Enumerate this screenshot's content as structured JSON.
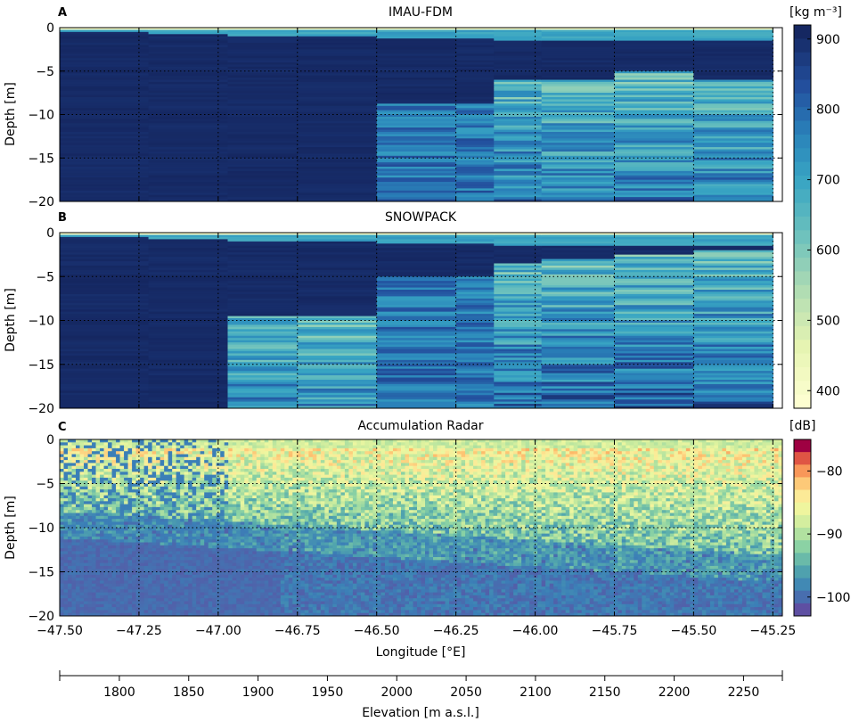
{
  "figure": {
    "x_axis_label": "Longitude [°E]",
    "x2_axis_label": "Elevation [m a.s.l.]",
    "x_ticks": [
      "−47.50",
      "−47.25",
      "−47.00",
      "−46.75",
      "−46.50",
      "−46.25",
      "−46.00",
      "−45.75",
      "−45.50",
      "−45.25"
    ],
    "x_tick_values": [
      -47.5,
      -47.25,
      -47.0,
      -46.75,
      -46.5,
      -46.25,
      -46.0,
      -45.75,
      -45.5,
      -45.25
    ],
    "x2_ticks": [
      "1800",
      "1850",
      "1900",
      "1950",
      "2000",
      "2050",
      "2100",
      "2150",
      "2200",
      "2250"
    ],
    "x2_tick_values": [
      1800,
      1850,
      1900,
      1950,
      2000,
      2050,
      2100,
      2150,
      2200,
      2250
    ],
    "x2_range": [
      1757,
      2278
    ]
  },
  "chart_data": [
    {
      "type": "heatmap",
      "panel_letter": "A",
      "title": "IMAU-FDM",
      "ylabel": "Depth [m]",
      "xlim": [
        -47.5,
        -45.22
      ],
      "ylim": [
        -20,
        0
      ],
      "y_ticks": [
        "0",
        "−5",
        "−10",
        "−15",
        "−20"
      ],
      "y_tick_values": [
        0,
        -5,
        -10,
        -15,
        -20
      ],
      "columns_lon": [
        -47.5,
        -47.22,
        -46.97,
        -46.75,
        -46.5,
        -46.25,
        -46.13,
        -45.98,
        -45.75,
        -45.5,
        -45.25
      ],
      "transition_depth_m": [
        -0.5,
        -0.8,
        -0.9,
        -1.0,
        -1.2,
        -1.3,
        -1.4,
        -1.5,
        -1.5,
        -1.6
      ],
      "firn_depth_m": [
        -20,
        -20,
        -20,
        -20,
        -8.7,
        -8.7,
        -6.0,
        -6.0,
        -5.0,
        -6.0
      ],
      "grid": true
    },
    {
      "type": "heatmap",
      "panel_letter": "B",
      "title": "SNOWPACK",
      "ylabel": "Depth [m]",
      "xlim": [
        -47.5,
        -45.22
      ],
      "ylim": [
        -20,
        0
      ],
      "y_ticks": [
        "0",
        "−5",
        "−10",
        "−15",
        "−20"
      ],
      "y_tick_values": [
        0,
        -5,
        -10,
        -15,
        -20
      ],
      "columns_lon": [
        -47.5,
        -47.22,
        -46.97,
        -46.75,
        -46.5,
        -46.25,
        -46.13,
        -45.98,
        -45.75,
        -45.5,
        -45.25
      ],
      "transition_depth_m": [
        -0.5,
        -0.8,
        -0.9,
        -1.0,
        -1.2,
        -1.3,
        -1.4,
        -1.5,
        -1.5,
        -1.6
      ],
      "firn_depth_m": [
        -20,
        -20,
        -9.5,
        -9.5,
        -5.0,
        -5.0,
        -3.5,
        -3.0,
        -2.5,
        -2.0
      ],
      "grid": true
    },
    {
      "type": "heatmap",
      "panel_letter": "C",
      "title": "Accumulation Radar",
      "ylabel": "Depth [m]",
      "xlim": [
        -47.5,
        -45.22
      ],
      "ylim": [
        -20,
        0
      ],
      "y_ticks": [
        "0",
        "−5",
        "−10",
        "−15",
        "−20"
      ],
      "y_tick_values": [
        0,
        -5,
        -10,
        -15,
        -20
      ],
      "grid": true
    }
  ],
  "colorbars": [
    {
      "label": "[kg m⁻³]",
      "range": [
        375,
        920
      ],
      "ticks": [
        "900",
        "800",
        "700",
        "600",
        "500",
        "400"
      ],
      "tick_values": [
        900,
        800,
        700,
        600,
        500,
        400
      ]
    },
    {
      "label": "[dB]",
      "range": [
        -103,
        -75
      ],
      "ticks": [
        "−80",
        "−90",
        "−100"
      ],
      "tick_values": [
        -80,
        -90,
        -100
      ]
    }
  ],
  "colors": {
    "density_dark": "#152761",
    "density_light": "#fbfdcb",
    "radar_low": "#5e4fa2",
    "radar_high": "#9e0142"
  }
}
